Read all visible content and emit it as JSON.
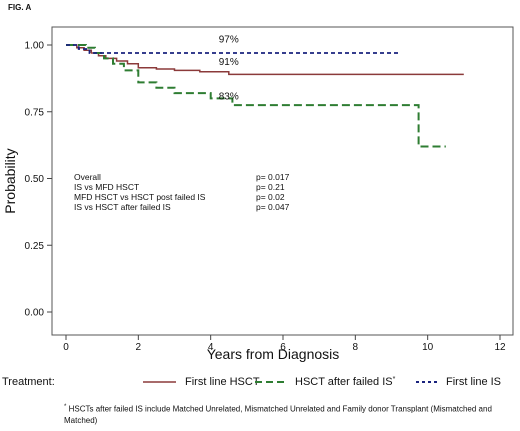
{
  "figure_label": "FIG. A",
  "chart_data": {
    "type": "line",
    "title": "",
    "xlabel": "Years from Diagnosis",
    "ylabel": "Probability",
    "xlim": [
      0,
      12
    ],
    "ylim": [
      0,
      1.05
    ],
    "x_ticks": [
      "0",
      "2",
      "4",
      "6",
      "8",
      "10",
      "12"
    ],
    "y_ticks": [
      "0.00",
      "0.25",
      "0.50",
      "0.75",
      "1.00"
    ],
    "x_tick_values": [
      0,
      2,
      4,
      6,
      8,
      10,
      12
    ],
    "y_tick_values": [
      0,
      0.25,
      0.5,
      0.75,
      1.0
    ],
    "grid": false,
    "step": true,
    "series": [
      {
        "name": "First line HSCT",
        "color": "#8b3a3a",
        "dash": "solid",
        "x": [
          0,
          0.3,
          0.5,
          0.7,
          0.9,
          1.1,
          1.4,
          1.7,
          2.0,
          2.5,
          3.0,
          3.7,
          4.5,
          11.0
        ],
        "y": [
          1.0,
          0.99,
          0.98,
          0.97,
          0.96,
          0.95,
          0.94,
          0.93,
          0.915,
          0.91,
          0.905,
          0.9,
          0.89,
          0.89
        ]
      },
      {
        "name": "HSCT after failed IS",
        "color": "#2e7d32",
        "dash": "long-dash",
        "x": [
          0,
          0.55,
          0.8,
          1.05,
          1.3,
          1.6,
          2.0,
          2.5,
          3.0,
          4.0,
          4.6,
          9.75,
          10.5
        ],
        "y": [
          1.0,
          0.99,
          0.97,
          0.95,
          0.93,
          0.905,
          0.86,
          0.84,
          0.82,
          0.8,
          0.775,
          0.62,
          0.62
        ]
      },
      {
        "name": "First line IS",
        "color": "#1a237e",
        "dash": "short-dash",
        "x": [
          0,
          0.35,
          0.65,
          9.2
        ],
        "y": [
          1.0,
          0.985,
          0.97,
          0.97
        ]
      }
    ],
    "annotations": [
      {
        "text": "97%",
        "x": 4.5,
        "y": 1.01
      },
      {
        "text": "91%",
        "x": 4.5,
        "y": 0.925
      },
      {
        "text": "83%",
        "x": 4.5,
        "y": 0.795
      }
    ],
    "pvalues": [
      {
        "label": "Overall",
        "value": "p= 0.017"
      },
      {
        "label": "IS vs MFD  HSCT",
        "value": "p= 0.21"
      },
      {
        "label": "MFD  HSCT vs HSCT post failed IS",
        "value": "p= 0.02"
      },
      {
        "label": "IS vs HSCT after failed IS",
        "value": "p= 0.047"
      }
    ],
    "legend": {
      "title": "Treatment:",
      "placement": "bottom",
      "items": [
        "First line HSCT",
        "HSCT after failed IS",
        "First line IS"
      ]
    }
  },
  "footnote": {
    "marker": "*",
    "text": "HSCTs after failed IS include Matched Unrelated, Mismatched Unrelated and Family donor Transplant (Mismatched and Matched)"
  }
}
